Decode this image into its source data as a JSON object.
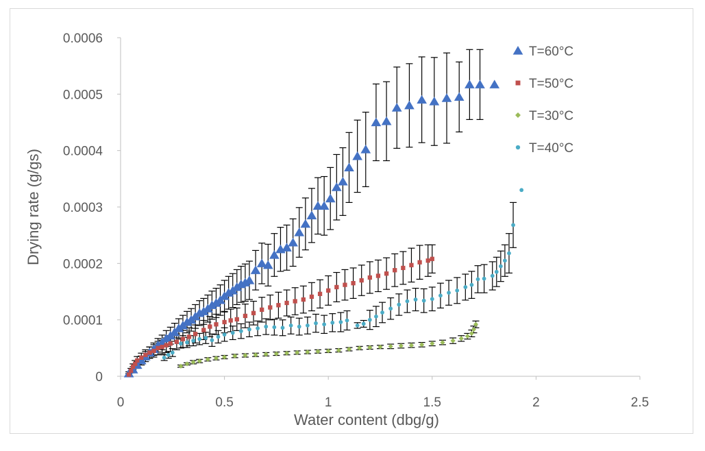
{
  "chart_data": {
    "type": "scatter",
    "title": "",
    "xlabel": "Water content (dbg/g)",
    "ylabel": "Drying rate (g/gs)",
    "xlim": [
      0,
      2.5
    ],
    "ylim": [
      0,
      0.0006
    ],
    "x_ticks": [
      "0",
      "0.5",
      "1",
      "1.5",
      "2",
      "2.5"
    ],
    "y_ticks": [
      "0",
      "0.0001",
      "0.0002",
      "0.0003",
      "0.0004",
      "0.0005",
      "0.0006"
    ],
    "grid": false,
    "legend_position": "top-right",
    "series": [
      {
        "name": "T=60°C",
        "marker": "triangle",
        "color": "#4472c4",
        "x": [
          0.04,
          0.06,
          0.08,
          0.1,
          0.12,
          0.14,
          0.16,
          0.18,
          0.2,
          0.22,
          0.24,
          0.26,
          0.28,
          0.3,
          0.32,
          0.34,
          0.36,
          0.38,
          0.4,
          0.42,
          0.44,
          0.46,
          0.48,
          0.5,
          0.52,
          0.54,
          0.56,
          0.58,
          0.6,
          0.62,
          0.65,
          0.68,
          0.71,
          0.74,
          0.77,
          0.8,
          0.83,
          0.86,
          0.89,
          0.92,
          0.95,
          0.98,
          1.01,
          1.04,
          1.07,
          1.1,
          1.14,
          1.18,
          1.23,
          1.28,
          1.33,
          1.39,
          1.45,
          1.51,
          1.57,
          1.63,
          1.68,
          1.73,
          1.8
        ],
        "y": [
          5e-06,
          1.2e-05,
          2e-05,
          2.8e-05,
          3.5e-05,
          4.2e-05,
          4.8e-05,
          5.5e-05,
          6e-05,
          6.7e-05,
          7.2e-05,
          7.8e-05,
          8.5e-05,
          9e-05,
          9.6e-05,
          0.0001,
          0.000106,
          0.000112,
          0.000115,
          0.00012,
          0.000126,
          0.00013,
          0.000135,
          0.000142,
          0.000148,
          0.000152,
          0.000158,
          0.000163,
          0.000166,
          0.00017,
          0.000188,
          0.0002,
          0.000197,
          0.000215,
          0.000225,
          0.000228,
          0.000237,
          0.000255,
          0.00027,
          0.000285,
          0.000302,
          0.000302,
          0.000315,
          0.000335,
          0.000345,
          0.00037,
          0.00039,
          0.000402,
          0.00045,
          0.000452,
          0.000476,
          0.00048,
          0.00049,
          0.000487,
          0.000493,
          0.000495,
          0.000517,
          0.000517,
          0.000517
        ],
        "err": [
          3e-06,
          5e-06,
          6e-06,
          8e-06,
          9e-06,
          1e-05,
          1.1e-05,
          1.2e-05,
          1.3e-05,
          1.4e-05,
          1.5e-05,
          1.6e-05,
          1.7e-05,
          1.8e-05,
          1.9e-05,
          2e-05,
          2.1e-05,
          2.2e-05,
          2.3e-05,
          2.4e-05,
          2.5e-05,
          2.6e-05,
          2.7e-05,
          2.8e-05,
          2.9e-05,
          3e-05,
          3.1e-05,
          3.2e-05,
          3.3e-05,
          3.4e-05,
          3.5e-05,
          3.6e-05,
          3.7e-05,
          3.8e-05,
          3.9e-05,
          4e-05,
          4.2e-05,
          4.4e-05,
          4.6e-05,
          4.8e-05,
          5e-05,
          5.2e-05,
          5.5e-05,
          5.8e-05,
          6e-05,
          6.2e-05,
          6.4e-05,
          6.6e-05,
          6.8e-05,
          7e-05,
          7.2e-05,
          7.4e-05,
          7.6e-05,
          7.8e-05,
          8e-05,
          6.2e-05,
          6.2e-05,
          6.2e-05,
          0.0
        ]
      },
      {
        "name": "T=50°C",
        "marker": "square",
        "color": "#c0504d",
        "x": [
          0.04,
          0.05,
          0.06,
          0.07,
          0.08,
          0.1,
          0.12,
          0.14,
          0.16,
          0.18,
          0.2,
          0.22,
          0.24,
          0.27,
          0.3,
          0.33,
          0.36,
          0.4,
          0.43,
          0.46,
          0.5,
          0.53,
          0.56,
          0.6,
          0.64,
          0.68,
          0.72,
          0.76,
          0.8,
          0.84,
          0.88,
          0.92,
          0.96,
          1.0,
          1.04,
          1.08,
          1.12,
          1.16,
          1.2,
          1.24,
          1.28,
          1.32,
          1.36,
          1.4,
          1.44,
          1.48,
          1.5
        ],
        "y": [
          3e-06,
          1e-05,
          1.7e-05,
          2.2e-05,
          2.8e-05,
          3.3e-05,
          3.8e-05,
          4.2e-05,
          4.5e-05,
          5e-05,
          5.2e-05,
          5.5e-05,
          5.8e-05,
          6.1e-05,
          6.6e-05,
          7e-05,
          7.5e-05,
          8.2e-05,
          8.8e-05,
          9.2e-05,
          9.6e-05,
          9.9e-05,
          0.000101,
          0.000107,
          0.000112,
          0.000118,
          0.000122,
          0.000126,
          0.00013,
          0.000133,
          0.000136,
          0.000141,
          0.000146,
          0.000152,
          0.000158,
          0.000162,
          0.000165,
          0.00017,
          0.000175,
          0.000178,
          0.000182,
          0.000188,
          0.000192,
          0.000197,
          0.000202,
          0.000205,
          0.000208
        ],
        "err": [
          2e-06,
          4e-06,
          5e-06,
          6e-06,
          7e-06,
          8e-06,
          9e-06,
          1e-05,
          1.1e-05,
          1.2e-05,
          1.2e-05,
          1.3e-05,
          1.4e-05,
          1.4e-05,
          1.5e-05,
          1.6e-05,
          1.6e-05,
          1.7e-05,
          1.8e-05,
          1.8e-05,
          1.9e-05,
          2e-05,
          2e-05,
          2.1e-05,
          2.1e-05,
          2.2e-05,
          2.2e-05,
          2.3e-05,
          2.3e-05,
          2.4e-05,
          2.4e-05,
          2.5e-05,
          2.5e-05,
          2.6e-05,
          2.6e-05,
          2.7e-05,
          2.7e-05,
          2.7e-05,
          2.8e-05,
          2.8e-05,
          2.8e-05,
          2.9e-05,
          2.9e-05,
          3e-05,
          3e-05,
          2.8e-05,
          2.5e-05
        ]
      },
      {
        "name": "T=30°C",
        "marker": "diamond",
        "color": "#9bbb59",
        "x": [
          0.29,
          0.32,
          0.35,
          0.38,
          0.42,
          0.46,
          0.5,
          0.55,
          0.6,
          0.65,
          0.7,
          0.75,
          0.8,
          0.85,
          0.9,
          0.95,
          1.0,
          1.05,
          1.1,
          1.15,
          1.2,
          1.25,
          1.3,
          1.35,
          1.4,
          1.45,
          1.5,
          1.55,
          1.6,
          1.64,
          1.67,
          1.69,
          1.7,
          1.71
        ],
        "y": [
          1.8e-05,
          2.2e-05,
          2.5e-05,
          2.7e-05,
          3e-05,
          3.2e-05,
          3.4e-05,
          3.6e-05,
          3.7e-05,
          3.8e-05,
          3.9e-05,
          4e-05,
          4.1e-05,
          4.2e-05,
          4.3e-05,
          4.4e-05,
          4.5e-05,
          4.6e-05,
          4.8e-05,
          5e-05,
          5.1e-05,
          5.2e-05,
          5.3e-05,
          5.4e-05,
          5.5e-05,
          5.6e-05,
          5.8e-05,
          6e-05,
          6.3e-05,
          6.7e-05,
          7.1e-05,
          7.6e-05,
          8.3e-05,
          9.2e-05
        ],
        "err": [
          2e-06,
          2e-06,
          3e-06,
          3e-06,
          3e-06,
          3e-06,
          3e-06,
          3e-06,
          3e-06,
          3e-06,
          3e-06,
          3e-06,
          3e-06,
          3e-06,
          3e-06,
          3e-06,
          3e-06,
          3e-06,
          3e-06,
          3e-06,
          3e-06,
          3e-06,
          4e-06,
          4e-06,
          4e-06,
          4e-06,
          4e-06,
          4e-06,
          5e-06,
          5e-06,
          5e-06,
          6e-06,
          6e-06,
          6e-06
        ]
      },
      {
        "name": "T=40°C",
        "marker": "circle",
        "color": "#4bacc6",
        "x": [
          0.21,
          0.23,
          0.25,
          0.29,
          0.32,
          0.35,
          0.38,
          0.41,
          0.44,
          0.47,
          0.5,
          0.54,
          0.58,
          0.62,
          0.66,
          0.7,
          0.74,
          0.78,
          0.82,
          0.86,
          0.9,
          0.94,
          0.98,
          1.02,
          1.06,
          1.09,
          1.14,
          1.17,
          1.2,
          1.23,
          1.26,
          1.3,
          1.34,
          1.38,
          1.42,
          1.46,
          1.5,
          1.54,
          1.58,
          1.62,
          1.66,
          1.69,
          1.72,
          1.75,
          1.79,
          1.81,
          1.83,
          1.85,
          1.87,
          1.89,
          1.93
        ],
        "y": [
          3.3e-05,
          3.8e-05,
          4.2e-05,
          5.8e-05,
          6e-05,
          6.3e-05,
          6.6e-05,
          6.8e-05,
          6.4e-05,
          7e-05,
          7.4e-05,
          7.7e-05,
          8e-05,
          8.3e-05,
          8.5e-05,
          8.8e-05,
          8.7e-05,
          8.6e-05,
          9e-05,
          8.8e-05,
          9e-05,
          9.4e-05,
          9.2e-05,
          9.5e-05,
          9.6e-05,
          9.9e-05,
          9e-05,
          9.3e-05,
          0.0001,
          0.000106,
          0.000113,
          0.00012,
          0.000127,
          0.000133,
          0.000136,
          0.000134,
          0.000137,
          0.000143,
          0.000148,
          0.000152,
          0.000158,
          0.000162,
          0.000172,
          0.000173,
          0.000178,
          0.000185,
          0.000195,
          0.000205,
          0.000218,
          0.000268,
          0.00033
        ],
        "err": [
          5e-06,
          6e-06,
          7e-06,
          8e-06,
          9e-06,
          9e-06,
          1e-05,
          1e-05,
          1.1e-05,
          1.1e-05,
          1.2e-05,
          1.2e-05,
          1.3e-05,
          1.3e-05,
          1.3e-05,
          1.4e-05,
          1.4e-05,
          1.4e-05,
          1.5e-05,
          1.5e-05,
          1.5e-05,
          1.6e-05,
          1.6e-05,
          1.6e-05,
          1.7e-05,
          1.7e-05,
          5e-06,
          6e-06,
          1.7e-05,
          1.8e-05,
          1.8e-05,
          1.9e-05,
          1.9e-05,
          2e-05,
          2e-05,
          2.1e-05,
          2.1e-05,
          2.2e-05,
          2.2e-05,
          2.3e-05,
          2.3e-05,
          2.4e-05,
          2.4e-05,
          2.5e-05,
          2.5e-05,
          2.6e-05,
          2.7e-05,
          2.8e-05,
          3.5e-05,
          4e-05,
          0.0
        ]
      }
    ],
    "legend_order": [
      "T=60°C",
      "T=50°C",
      "T=30°C",
      "T=40°C"
    ]
  }
}
